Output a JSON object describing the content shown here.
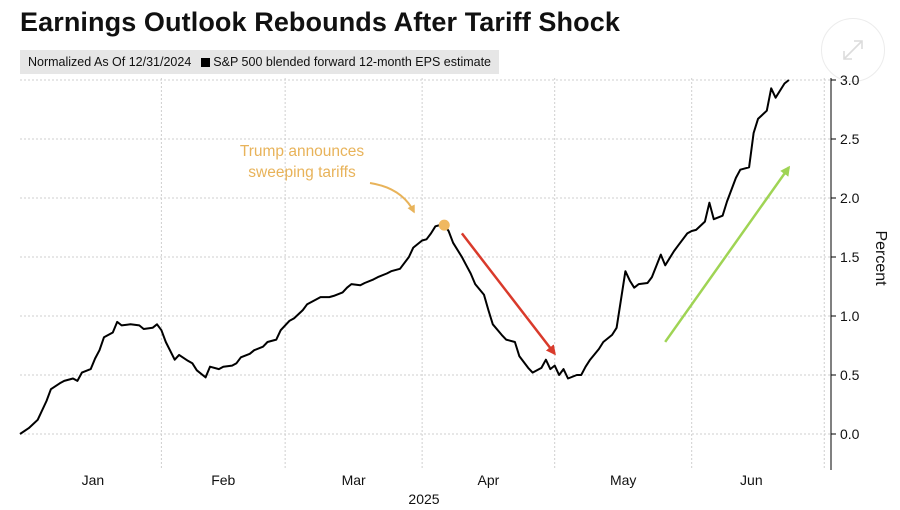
{
  "title": "Earnings Outlook Rebounds After Tariff Shock",
  "legend": {
    "note": "Normalized As Of 12/31/2024",
    "series_label": "S&P 500 blended forward 12-month EPS estimate"
  },
  "zoom_icon": "expand-arrows-icon",
  "annotation": {
    "line1": "Trump announces",
    "line2": "sweeping tariffs",
    "color": "#e8b35a"
  },
  "colors": {
    "line": "#000000",
    "down_arrow": "#d93a2b",
    "up_arrow": "#9fd454",
    "marker": "#f0b860"
  },
  "chart_data": {
    "type": "line",
    "title": "Earnings Outlook Rebounds After Tariff Shock",
    "xlabel": "2025",
    "ylabel": "Percent",
    "ylim": [
      -0.25,
      3.0
    ],
    "y_ticks": [
      "3.0",
      "2.5",
      "2.0",
      "1.5",
      "1.0",
      "0.5",
      "0.0"
    ],
    "months": [
      "Jan",
      "Feb",
      "Mar",
      "Apr",
      "May",
      "Jun"
    ],
    "year_label": "2025",
    "grid": true,
    "y_axis_side": "right",
    "x_range": [
      "2024-12-31",
      "2025-06-28"
    ],
    "series": [
      {
        "name": "S&P 500 blended forward 12-month EPS estimate",
        "points": [
          [
            "2024-12-31",
            0.0
          ],
          [
            "2025-01-02",
            0.05
          ],
          [
            "2025-01-04",
            0.12
          ],
          [
            "2025-01-06",
            0.28
          ],
          [
            "2025-01-07",
            0.38
          ],
          [
            "2025-01-09",
            0.43
          ],
          [
            "2025-01-10",
            0.45
          ],
          [
            "2025-01-12",
            0.47
          ],
          [
            "2025-01-13",
            0.45
          ],
          [
            "2025-01-14",
            0.52
          ],
          [
            "2025-01-16",
            0.55
          ],
          [
            "2025-01-17",
            0.64
          ],
          [
            "2025-01-18",
            0.71
          ],
          [
            "2025-01-19",
            0.82
          ],
          [
            "2025-01-21",
            0.86
          ],
          [
            "2025-01-22",
            0.95
          ],
          [
            "2025-01-23",
            0.92
          ],
          [
            "2025-01-25",
            0.93
          ],
          [
            "2025-01-27",
            0.92
          ],
          [
            "2025-01-28",
            0.89
          ],
          [
            "2025-01-30",
            0.9
          ],
          [
            "2025-01-31",
            0.93
          ],
          [
            "2025-02-01",
            0.88
          ],
          [
            "2025-02-02",
            0.78
          ],
          [
            "2025-02-04",
            0.63
          ],
          [
            "2025-02-05",
            0.67
          ],
          [
            "2025-02-07",
            0.62
          ],
          [
            "2025-02-08",
            0.6
          ],
          [
            "2025-02-09",
            0.54
          ],
          [
            "2025-02-11",
            0.48
          ],
          [
            "2025-02-12",
            0.57
          ],
          [
            "2025-02-14",
            0.55
          ],
          [
            "2025-02-15",
            0.57
          ],
          [
            "2025-02-17",
            0.58
          ],
          [
            "2025-02-18",
            0.6
          ],
          [
            "2025-02-19",
            0.65
          ],
          [
            "2025-02-21",
            0.68
          ],
          [
            "2025-02-22",
            0.71
          ],
          [
            "2025-02-24",
            0.74
          ],
          [
            "2025-02-25",
            0.78
          ],
          [
            "2025-02-27",
            0.8
          ],
          [
            "2025-02-28",
            0.88
          ],
          [
            "2025-03-02",
            0.96
          ],
          [
            "2025-03-03",
            0.98
          ],
          [
            "2025-03-05",
            1.05
          ],
          [
            "2025-03-06",
            1.1
          ],
          [
            "2025-03-08",
            1.14
          ],
          [
            "2025-03-09",
            1.16
          ],
          [
            "2025-03-11",
            1.16
          ],
          [
            "2025-03-12",
            1.17
          ],
          [
            "2025-03-14",
            1.2
          ],
          [
            "2025-03-15",
            1.24
          ],
          [
            "2025-03-16",
            1.27
          ],
          [
            "2025-03-18",
            1.26
          ],
          [
            "2025-03-19",
            1.28
          ],
          [
            "2025-03-21",
            1.31
          ],
          [
            "2025-03-22",
            1.33
          ],
          [
            "2025-03-24",
            1.36
          ],
          [
            "2025-03-25",
            1.38
          ],
          [
            "2025-03-27",
            1.4
          ],
          [
            "2025-03-29",
            1.5
          ],
          [
            "2025-03-30",
            1.58
          ],
          [
            "2025-04-01",
            1.64
          ],
          [
            "2025-04-02",
            1.65
          ],
          [
            "2025-04-03",
            1.7
          ],
          [
            "2025-04-04",
            1.76
          ],
          [
            "2025-04-05",
            1.77
          ],
          [
            "2025-04-06",
            1.77
          ],
          [
            "2025-04-07",
            1.72
          ],
          [
            "2025-04-08",
            1.62
          ],
          [
            "2025-04-10",
            1.5
          ],
          [
            "2025-04-11",
            1.43
          ],
          [
            "2025-04-12",
            1.36
          ],
          [
            "2025-04-13",
            1.27
          ],
          [
            "2025-04-15",
            1.18
          ],
          [
            "2025-04-16",
            1.05
          ],
          [
            "2025-04-17",
            0.93
          ],
          [
            "2025-04-19",
            0.84
          ],
          [
            "2025-04-20",
            0.8
          ],
          [
            "2025-04-22",
            0.78
          ],
          [
            "2025-04-23",
            0.66
          ],
          [
            "2025-04-25",
            0.56
          ],
          [
            "2025-04-26",
            0.52
          ],
          [
            "2025-04-28",
            0.56
          ],
          [
            "2025-04-29",
            0.63
          ],
          [
            "2025-04-30",
            0.55
          ],
          [
            "2025-05-01",
            0.58
          ],
          [
            "2025-05-02",
            0.5
          ],
          [
            "2025-05-03",
            0.55
          ],
          [
            "2025-05-04",
            0.47
          ],
          [
            "2025-05-06",
            0.5
          ],
          [
            "2025-05-07",
            0.5
          ],
          [
            "2025-05-08",
            0.57
          ],
          [
            "2025-05-09",
            0.63
          ],
          [
            "2025-05-11",
            0.72
          ],
          [
            "2025-05-12",
            0.78
          ],
          [
            "2025-05-14",
            0.84
          ],
          [
            "2025-05-15",
            0.9
          ],
          [
            "2025-05-17",
            1.38
          ],
          [
            "2025-05-18",
            1.3
          ],
          [
            "2025-05-19",
            1.24
          ],
          [
            "2025-05-20",
            1.27
          ],
          [
            "2025-05-22",
            1.28
          ],
          [
            "2025-05-23",
            1.33
          ],
          [
            "2025-05-25",
            1.52
          ],
          [
            "2025-05-26",
            1.43
          ],
          [
            "2025-05-28",
            1.55
          ],
          [
            "2025-05-29",
            1.6
          ],
          [
            "2025-05-31",
            1.7
          ],
          [
            "2025-06-01",
            1.72
          ],
          [
            "2025-06-02",
            1.73
          ],
          [
            "2025-06-04",
            1.8
          ],
          [
            "2025-06-05",
            1.96
          ],
          [
            "2025-06-06",
            1.82
          ],
          [
            "2025-06-08",
            1.85
          ],
          [
            "2025-06-09",
            1.97
          ],
          [
            "2025-06-11",
            2.17
          ],
          [
            "2025-06-12",
            2.24
          ],
          [
            "2025-06-14",
            2.26
          ],
          [
            "2025-06-15",
            2.55
          ],
          [
            "2025-06-16",
            2.67
          ],
          [
            "2025-06-18",
            2.74
          ],
          [
            "2025-06-19",
            2.93
          ],
          [
            "2025-06-20",
            2.85
          ],
          [
            "2025-06-22",
            2.97
          ],
          [
            "2025-06-23",
            3.0
          ]
        ]
      }
    ],
    "event_marker": {
      "date": "2025-04-06",
      "y": 1.77
    },
    "arrows": [
      {
        "name": "decline",
        "from": [
          "2025-04-10",
          1.7
        ],
        "to": [
          "2025-05-01",
          0.68
        ]
      },
      {
        "name": "rebound",
        "from": [
          "2025-05-26",
          0.78
        ],
        "to": [
          "2025-06-23",
          2.26
        ]
      }
    ]
  }
}
